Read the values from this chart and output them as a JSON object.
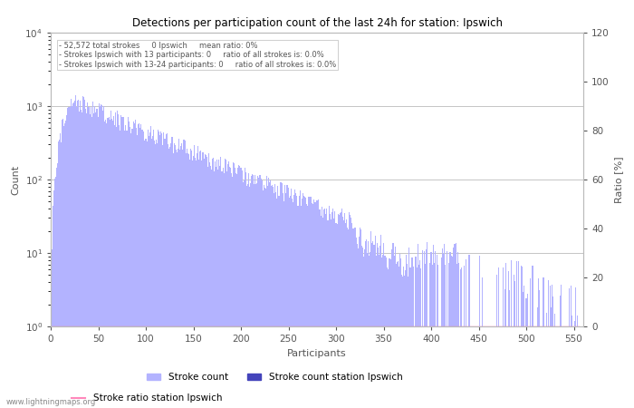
{
  "title": "Detections per participation count of the last 24h for station: Ipswich",
  "xlabel": "Participants",
  "ylabel_left": "Count",
  "ylabel_right": "Ratio [%]",
  "annotation_lines": [
    "52,572 total strokes     0 Ipswich     mean ratio: 0%",
    "Strokes Ipswich with 13 participants: 0     ratio of all strokes is: 0.0%",
    "Strokes Ipswich with 13-24 participants: 0     ratio of all strokes is: 0.0%"
  ],
  "bar_color_light": "#b3b3ff",
  "bar_color_dark": "#4444bb",
  "ratio_line_color": "#ff88bb",
  "background_color": "#ffffff",
  "grid_color": "#bbbbbb",
  "text_color": "#555555",
  "watermark": "www.lightningmaps.org",
  "xlim": [
    0,
    560
  ],
  "ylim_log_min": 1,
  "ylim_log_max": 10000,
  "ylim_right": [
    0,
    120
  ],
  "yticks_right": [
    0,
    20,
    40,
    60,
    80,
    100,
    120
  ],
  "xticks": [
    0,
    50,
    100,
    150,
    200,
    250,
    300,
    350,
    400,
    450,
    500,
    550
  ],
  "legend_entries": [
    "Stroke count",
    "Stroke count station Ipswich",
    "Stroke ratio station Ipswich"
  ],
  "peak_x": 22,
  "peak_val": 1200,
  "decay_rate": 0.013,
  "x_max": 555,
  "total_strokes": 52572
}
